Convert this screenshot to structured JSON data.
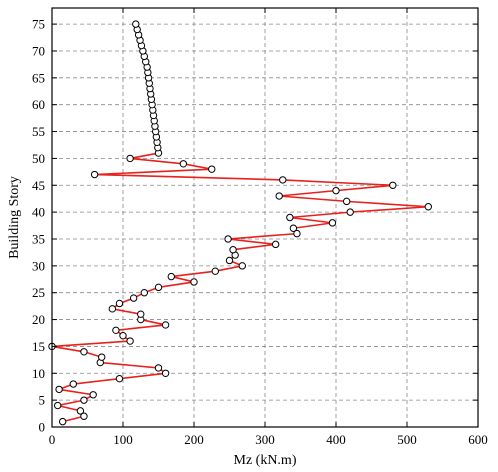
{
  "chart_data": {
    "type": "line",
    "title": "",
    "xlabel": "Mz (kN.m)",
    "ylabel": "Building Story",
    "xlim": [
      0,
      600
    ],
    "ylim": [
      0,
      78
    ],
    "xticks": [
      "0",
      "100",
      "200",
      "300",
      "400",
      "500",
      "600"
    ],
    "yticks": [
      "0",
      "5",
      "10",
      "15",
      "20",
      "25",
      "30",
      "35",
      "40",
      "45",
      "50",
      "55",
      "60",
      "65",
      "70",
      "75"
    ],
    "grid": true,
    "colors": {
      "line": "#e8211c",
      "marker_edge": "#000000",
      "marker_fill": "#ffffff"
    },
    "series": [
      {
        "x": [
          15,
          45,
          40,
          8,
          45,
          58,
          10,
          30,
          95,
          160,
          150,
          68,
          70,
          45,
          0,
          110,
          100,
          90,
          160,
          125,
          125,
          85,
          95,
          115,
          130,
          150,
          200,
          168,
          230,
          268,
          250,
          258,
          255,
          315,
          248,
          345,
          340,
          395,
          335,
          420,
          530,
          415,
          320,
          400,
          480,
          325,
          60,
          225,
          185,
          110,
          150,
          149,
          148,
          147,
          146,
          145,
          144,
          143,
          142,
          141,
          140,
          139,
          138,
          137,
          136,
          135,
          134,
          132,
          130,
          128,
          126,
          124,
          122,
          120,
          118
        ],
        "y": [
          1,
          2,
          3,
          4,
          5,
          6,
          7,
          8,
          9,
          10,
          11,
          12,
          13,
          14,
          15,
          16,
          17,
          18,
          19,
          20,
          21,
          22,
          23,
          24,
          25,
          26,
          27,
          28,
          29,
          30,
          31,
          32,
          33,
          34,
          35,
          36,
          37,
          38,
          39,
          40,
          41,
          42,
          43,
          44,
          45,
          46,
          47,
          48,
          49,
          50,
          51,
          52,
          53,
          54,
          55,
          56,
          57,
          58,
          59,
          60,
          61,
          62,
          63,
          64,
          65,
          66,
          67,
          68,
          69,
          70,
          71,
          72,
          73,
          74,
          75
        ]
      }
    ]
  }
}
